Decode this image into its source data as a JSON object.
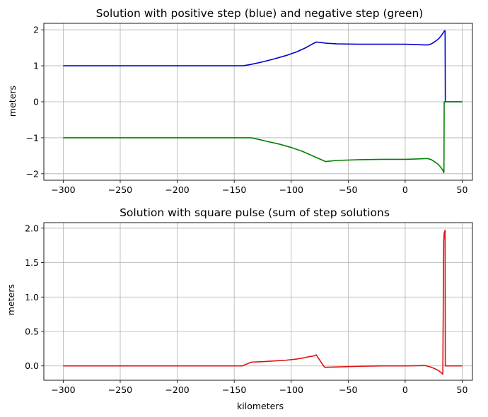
{
  "chart_data": [
    {
      "type": "line",
      "title": "Solution with positive step (blue) and negative step (green)",
      "xlabel": "",
      "ylabel": "meters",
      "xlim": [
        -317,
        59
      ],
      "ylim": [
        -2.18,
        2.18
      ],
      "xticks": [
        -300,
        -250,
        -200,
        -150,
        -100,
        -50,
        0,
        50
      ],
      "yticks": [
        -2,
        -1,
        0,
        1,
        2
      ],
      "xtick_labels": [
        "−300",
        "−250",
        "−200",
        "−150",
        "−100",
        "−50",
        "0",
        "50"
      ],
      "ytick_labels": [
        "−2",
        "−1",
        "0",
        "1",
        "2"
      ],
      "grid": true,
      "series": [
        {
          "color": "#0000cc",
          "x": [
            -300,
            -142,
            -135,
            -125,
            -115,
            -105,
            -95,
            -88,
            -84,
            -80,
            -78,
            -70,
            -60,
            -40,
            -20,
            0,
            10,
            17,
            20,
            23,
            26,
            29,
            31,
            33,
            34.5,
            35,
            35.2,
            50
          ],
          "y": [
            1.0,
            1.0,
            1.04,
            1.11,
            1.19,
            1.28,
            1.39,
            1.49,
            1.56,
            1.63,
            1.66,
            1.63,
            1.61,
            1.6,
            1.6,
            1.6,
            1.59,
            1.58,
            1.58,
            1.61,
            1.67,
            1.74,
            1.81,
            1.9,
            1.97,
            1.97,
            0.0,
            0.0
          ]
        },
        {
          "color": "#008000",
          "x": [
            -300,
            -135,
            -128,
            -120,
            -110,
            -100,
            -90,
            -80,
            -72,
            -70,
            -60,
            -40,
            -20,
            0,
            10,
            17,
            20,
            23,
            26,
            29,
            31,
            33,
            33.8,
            34.0,
            34.2,
            50
          ],
          "y": [
            -1.0,
            -1.0,
            -1.05,
            -1.11,
            -1.18,
            -1.27,
            -1.38,
            -1.52,
            -1.63,
            -1.66,
            -1.63,
            -1.61,
            -1.6,
            -1.6,
            -1.59,
            -1.58,
            -1.58,
            -1.61,
            -1.67,
            -1.74,
            -1.81,
            -1.9,
            -1.97,
            -1.95,
            0.0,
            0.0
          ]
        }
      ]
    },
    {
      "type": "line",
      "title": "Solution with square pulse (sum of step solutions",
      "xlabel": "kilometers",
      "ylabel": "meters",
      "xlim": [
        -317,
        59
      ],
      "ylim": [
        -0.208,
        2.08
      ],
      "xticks": [
        -300,
        -250,
        -200,
        -150,
        -100,
        -50,
        0,
        50
      ],
      "yticks": [
        0.0,
        0.5,
        1.0,
        1.5,
        2.0
      ],
      "xtick_labels": [
        "−300",
        "−250",
        "−200",
        "−150",
        "−100",
        "−50",
        "0",
        "50"
      ],
      "ytick_labels": [
        "0.0",
        "0.5",
        "1.0",
        "1.5",
        "2.0"
      ],
      "grid": true,
      "series": [
        {
          "color": "#dd1111",
          "x": [
            -300,
            -143,
            -135,
            -125,
            -115,
            -105,
            -95,
            -88,
            -84,
            -80,
            -78,
            -71,
            -70,
            -60,
            -40,
            -20,
            0,
            10,
            17,
            20,
            23,
            26,
            29,
            31,
            33,
            33.8,
            34.0,
            34.2,
            35,
            35.2,
            50
          ],
          "y": [
            0.0,
            0.0,
            0.055,
            0.062,
            0.072,
            0.082,
            0.1,
            0.12,
            0.135,
            0.145,
            0.16,
            -0.015,
            -0.02,
            -0.015,
            -0.005,
            0.0,
            0.0,
            0.003,
            0.006,
            -0.005,
            -0.02,
            -0.04,
            -0.065,
            -0.09,
            -0.12,
            1.83,
            1.86,
            1.93,
            1.97,
            0.0,
            0.0
          ]
        }
      ]
    }
  ]
}
